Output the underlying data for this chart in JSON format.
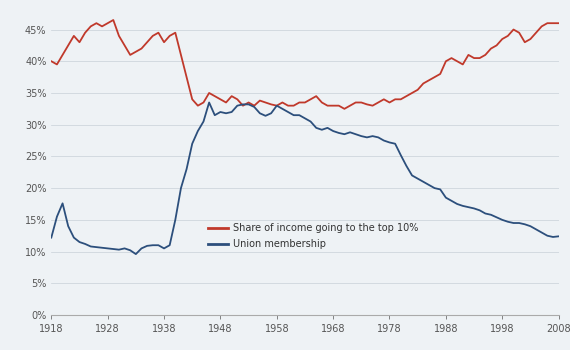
{
  "line1_label": "Share of income going to the top 10%",
  "line2_label": "Union membership",
  "line1_color": "#c0392b",
  "line2_color": "#2c4f7c",
  "background_color": "#eef2f5",
  "xlim": [
    1918,
    2008
  ],
  "ylim": [
    0,
    48
  ],
  "yticks": [
    0,
    5,
    10,
    15,
    20,
    25,
    30,
    35,
    40,
    45
  ],
  "xticks": [
    1918,
    1928,
    1938,
    1948,
    1958,
    1968,
    1978,
    1988,
    1998,
    2008
  ],
  "union_data": [
    [
      1918,
      12.2
    ],
    [
      1919,
      15.5
    ],
    [
      1920,
      17.6
    ],
    [
      1921,
      14.0
    ],
    [
      1922,
      12.2
    ],
    [
      1923,
      11.5
    ],
    [
      1924,
      11.2
    ],
    [
      1925,
      10.8
    ],
    [
      1926,
      10.7
    ],
    [
      1927,
      10.6
    ],
    [
      1928,
      10.5
    ],
    [
      1929,
      10.4
    ],
    [
      1930,
      10.3
    ],
    [
      1931,
      10.5
    ],
    [
      1932,
      10.2
    ],
    [
      1933,
      9.6
    ],
    [
      1934,
      10.5
    ],
    [
      1935,
      10.9
    ],
    [
      1936,
      11.0
    ],
    [
      1937,
      11.0
    ],
    [
      1938,
      10.5
    ],
    [
      1939,
      11.0
    ],
    [
      1940,
      15.0
    ],
    [
      1941,
      20.0
    ],
    [
      1942,
      23.0
    ],
    [
      1943,
      27.0
    ],
    [
      1944,
      29.0
    ],
    [
      1945,
      30.5
    ],
    [
      1946,
      33.5
    ],
    [
      1947,
      31.5
    ],
    [
      1948,
      32.0
    ],
    [
      1949,
      31.8
    ],
    [
      1950,
      32.0
    ],
    [
      1951,
      33.0
    ],
    [
      1952,
      33.2
    ],
    [
      1953,
      33.2
    ],
    [
      1954,
      32.8
    ],
    [
      1955,
      31.8
    ],
    [
      1956,
      31.4
    ],
    [
      1957,
      31.8
    ],
    [
      1958,
      33.0
    ],
    [
      1959,
      32.5
    ],
    [
      1960,
      32.0
    ],
    [
      1961,
      31.5
    ],
    [
      1962,
      31.5
    ],
    [
      1963,
      31.0
    ],
    [
      1964,
      30.5
    ],
    [
      1965,
      29.5
    ],
    [
      1966,
      29.2
    ],
    [
      1967,
      29.5
    ],
    [
      1968,
      29.0
    ],
    [
      1969,
      28.7
    ],
    [
      1970,
      28.5
    ],
    [
      1971,
      28.8
    ],
    [
      1972,
      28.5
    ],
    [
      1973,
      28.2
    ],
    [
      1974,
      28.0
    ],
    [
      1975,
      28.2
    ],
    [
      1976,
      28.0
    ],
    [
      1977,
      27.5
    ],
    [
      1978,
      27.2
    ],
    [
      1979,
      27.0
    ],
    [
      1980,
      25.2
    ],
    [
      1981,
      23.5
    ],
    [
      1982,
      22.0
    ],
    [
      1983,
      21.5
    ],
    [
      1984,
      21.0
    ],
    [
      1985,
      20.5
    ],
    [
      1986,
      20.0
    ],
    [
      1987,
      19.8
    ],
    [
      1988,
      18.5
    ],
    [
      1989,
      18.0
    ],
    [
      1990,
      17.5
    ],
    [
      1991,
      17.2
    ],
    [
      1992,
      17.0
    ],
    [
      1993,
      16.8
    ],
    [
      1994,
      16.5
    ],
    [
      1995,
      16.0
    ],
    [
      1996,
      15.8
    ],
    [
      1997,
      15.4
    ],
    [
      1998,
      15.0
    ],
    [
      1999,
      14.7
    ],
    [
      2000,
      14.5
    ],
    [
      2001,
      14.5
    ],
    [
      2002,
      14.3
    ],
    [
      2003,
      14.0
    ],
    [
      2004,
      13.5
    ],
    [
      2005,
      13.0
    ],
    [
      2006,
      12.5
    ],
    [
      2007,
      12.3
    ],
    [
      2008,
      12.4
    ]
  ],
  "income_data": [
    [
      1918,
      40.0
    ],
    [
      1919,
      39.5
    ],
    [
      1920,
      41.0
    ],
    [
      1921,
      42.5
    ],
    [
      1922,
      44.0
    ],
    [
      1923,
      43.0
    ],
    [
      1924,
      44.5
    ],
    [
      1925,
      45.5
    ],
    [
      1926,
      46.0
    ],
    [
      1927,
      45.5
    ],
    [
      1928,
      46.0
    ],
    [
      1929,
      46.5
    ],
    [
      1930,
      44.0
    ],
    [
      1931,
      42.5
    ],
    [
      1932,
      41.0
    ],
    [
      1933,
      41.5
    ],
    [
      1934,
      42.0
    ],
    [
      1935,
      43.0
    ],
    [
      1936,
      44.0
    ],
    [
      1937,
      44.5
    ],
    [
      1938,
      43.0
    ],
    [
      1939,
      44.0
    ],
    [
      1940,
      44.5
    ],
    [
      1941,
      41.0
    ],
    [
      1942,
      37.5
    ],
    [
      1943,
      34.0
    ],
    [
      1944,
      33.0
    ],
    [
      1945,
      33.5
    ],
    [
      1946,
      35.0
    ],
    [
      1947,
      34.5
    ],
    [
      1948,
      34.0
    ],
    [
      1949,
      33.5
    ],
    [
      1950,
      34.5
    ],
    [
      1951,
      34.0
    ],
    [
      1952,
      33.0
    ],
    [
      1953,
      33.5
    ],
    [
      1954,
      33.0
    ],
    [
      1955,
      33.8
    ],
    [
      1956,
      33.5
    ],
    [
      1957,
      33.2
    ],
    [
      1958,
      33.0
    ],
    [
      1959,
      33.5
    ],
    [
      1960,
      33.0
    ],
    [
      1961,
      33.0
    ],
    [
      1962,
      33.5
    ],
    [
      1963,
      33.5
    ],
    [
      1964,
      34.0
    ],
    [
      1965,
      34.5
    ],
    [
      1966,
      33.5
    ],
    [
      1967,
      33.0
    ],
    [
      1968,
      33.0
    ],
    [
      1969,
      33.0
    ],
    [
      1970,
      32.5
    ],
    [
      1971,
      33.0
    ],
    [
      1972,
      33.5
    ],
    [
      1973,
      33.5
    ],
    [
      1974,
      33.2
    ],
    [
      1975,
      33.0
    ],
    [
      1976,
      33.5
    ],
    [
      1977,
      34.0
    ],
    [
      1978,
      33.5
    ],
    [
      1979,
      34.0
    ],
    [
      1980,
      34.0
    ],
    [
      1981,
      34.5
    ],
    [
      1982,
      35.0
    ],
    [
      1983,
      35.5
    ],
    [
      1984,
      36.5
    ],
    [
      1985,
      37.0
    ],
    [
      1986,
      37.5
    ],
    [
      1987,
      38.0
    ],
    [
      1988,
      40.0
    ],
    [
      1989,
      40.5
    ],
    [
      1990,
      40.0
    ],
    [
      1991,
      39.5
    ],
    [
      1992,
      41.0
    ],
    [
      1993,
      40.5
    ],
    [
      1994,
      40.5
    ],
    [
      1995,
      41.0
    ],
    [
      1996,
      42.0
    ],
    [
      1997,
      42.5
    ],
    [
      1998,
      43.5
    ],
    [
      1999,
      44.0
    ],
    [
      2000,
      45.0
    ],
    [
      2001,
      44.5
    ],
    [
      2002,
      43.0
    ],
    [
      2003,
      43.5
    ],
    [
      2004,
      44.5
    ],
    [
      2005,
      45.5
    ],
    [
      2006,
      46.0
    ],
    [
      2007,
      46.0
    ],
    [
      2008,
      46.0
    ]
  ]
}
